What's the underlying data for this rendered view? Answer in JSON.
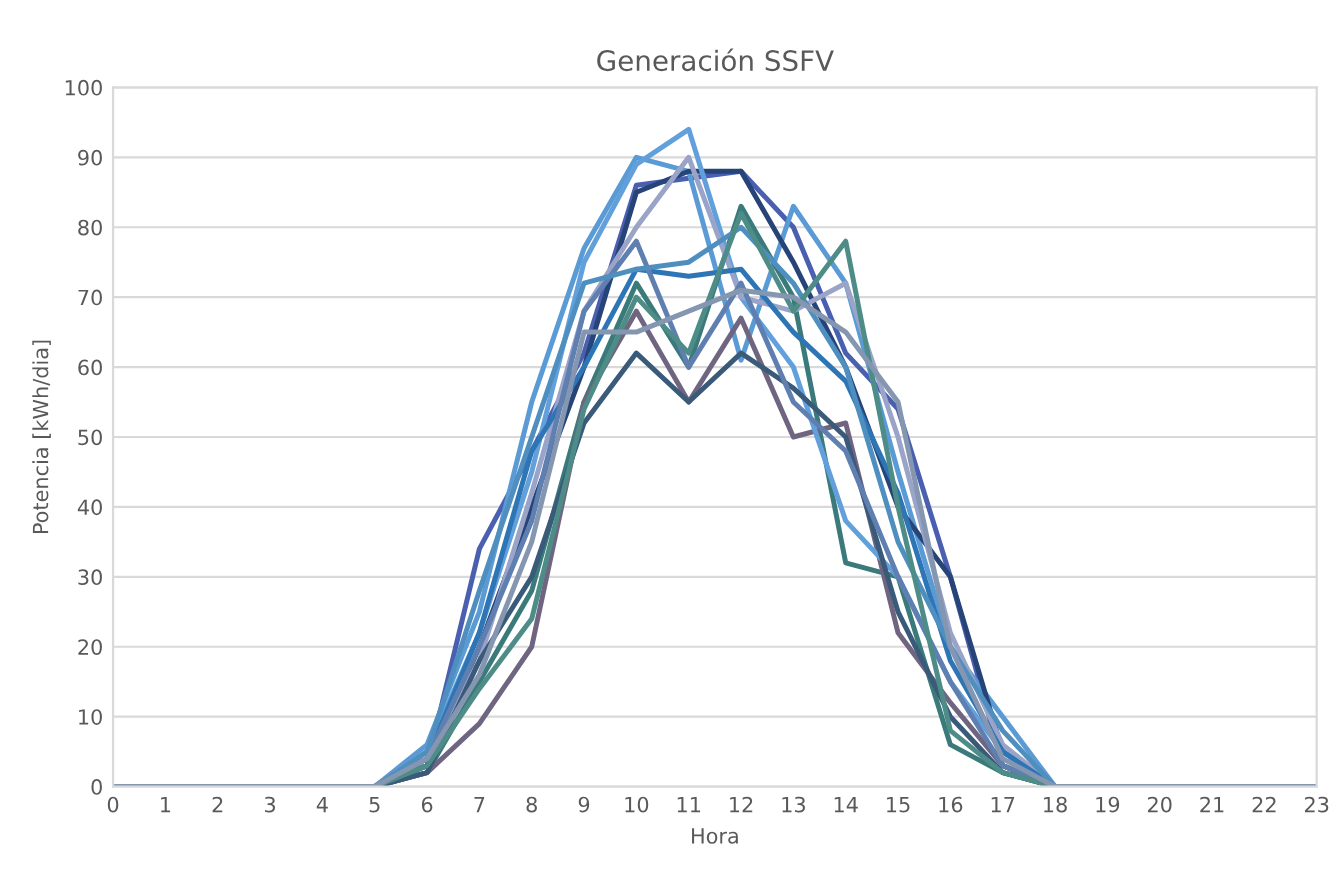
{
  "chart_data": {
    "type": "line",
    "title": "Generación SSFV",
    "xlabel": "Hora",
    "ylabel": "Potencia [kWh/dia]",
    "x": [
      0,
      1,
      2,
      3,
      4,
      5,
      6,
      7,
      8,
      9,
      10,
      11,
      12,
      13,
      14,
      15,
      16,
      17,
      18,
      19,
      20,
      21,
      22,
      23
    ],
    "xlim": [
      0,
      23
    ],
    "xticks": [
      0,
      1,
      2,
      3,
      4,
      5,
      6,
      7,
      8,
      9,
      10,
      11,
      12,
      13,
      14,
      15,
      16,
      17,
      18,
      19,
      20,
      21,
      22,
      23
    ],
    "ylim": [
      0,
      100
    ],
    "yticks": [
      0,
      10,
      20,
      30,
      40,
      50,
      60,
      70,
      80,
      90,
      100
    ],
    "grid": "y",
    "legend": false,
    "marker": "none",
    "line_style": "solid",
    "series": [
      {
        "color": "#4a5fb0",
        "values": [
          null,
          null,
          null,
          null,
          null,
          0,
          3,
          34,
          48,
          62,
          86,
          87,
          88,
          80,
          62,
          54,
          30,
          3,
          0,
          null,
          null,
          null,
          null,
          null
        ]
      },
      {
        "color": "#5b9bd5",
        "values": [
          null,
          null,
          null,
          null,
          null,
          0,
          6,
          25,
          55,
          77,
          90,
          88,
          61,
          83,
          72,
          45,
          20,
          10,
          0,
          null,
          null,
          null,
          null,
          null
        ]
      },
      {
        "color": "#264478",
        "values": [
          null,
          null,
          null,
          null,
          null,
          0,
          3,
          20,
          40,
          60,
          85,
          88,
          88,
          75,
          60,
          40,
          30,
          5,
          0,
          null,
          null,
          null,
          null,
          null
        ]
      },
      {
        "color": "#3b7a7a",
        "values": [
          null,
          null,
          null,
          null,
          null,
          0,
          2,
          15,
          28,
          55,
          72,
          60,
          83,
          70,
          32,
          30,
          6,
          2,
          0,
          null,
          null,
          null,
          null,
          null
        ]
      },
      {
        "color": "#6f6580",
        "values": [
          null,
          null,
          null,
          null,
          null,
          0,
          2,
          9,
          20,
          55,
          68,
          55,
          67,
          50,
          52,
          22,
          12,
          3,
          0,
          null,
          null,
          null,
          null,
          null
        ]
      },
      {
        "color": "#62a0dc",
        "values": [
          null,
          null,
          null,
          null,
          null,
          0,
          5,
          22,
          45,
          75,
          89,
          94,
          70,
          60,
          38,
          30,
          15,
          5,
          0,
          null,
          null,
          null,
          null,
          null
        ]
      },
      {
        "color": "#9aa3c8",
        "values": [
          null,
          null,
          null,
          null,
          null,
          0,
          5,
          18,
          42,
          68,
          80,
          90,
          70,
          68,
          72,
          50,
          22,
          6,
          0,
          null,
          null,
          null,
          null,
          null
        ]
      },
      {
        "color": "#2e75b6",
        "values": [
          null,
          null,
          null,
          null,
          null,
          0,
          4,
          22,
          48,
          60,
          74,
          73,
          74,
          65,
          58,
          42,
          18,
          5,
          0,
          null,
          null,
          null,
          null,
          null
        ]
      },
      {
        "color": "#3a5a7a",
        "values": [
          null,
          null,
          null,
          null,
          null,
          0,
          2,
          18,
          30,
          52,
          62,
          55,
          62,
          57,
          50,
          25,
          10,
          2,
          0,
          null,
          null,
          null,
          null,
          null
        ]
      },
      {
        "color": "#5f7fb0",
        "values": [
          null,
          null,
          null,
          null,
          null,
          0,
          4,
          20,
          38,
          68,
          78,
          60,
          72,
          55,
          48,
          30,
          15,
          3,
          0,
          null,
          null,
          null,
          null,
          null
        ]
      },
      {
        "color": "#4f8fc0",
        "values": [
          null,
          null,
          null,
          null,
          null,
          0,
          5,
          28,
          50,
          72,
          74,
          75,
          80,
          72,
          60,
          35,
          20,
          8,
          0,
          null,
          null,
          null,
          null,
          null
        ]
      },
      {
        "color": "#4e8c88",
        "values": [
          null,
          null,
          null,
          null,
          null,
          0,
          3,
          14,
          24,
          54,
          70,
          62,
          82,
          68,
          78,
          40,
          8,
          2,
          0,
          null,
          null,
          null,
          null,
          null
        ]
      },
      {
        "color": "#8496b0",
        "values": [
          0,
          0,
          0,
          0,
          0,
          0,
          4,
          16,
          35,
          65,
          65,
          68,
          71,
          70,
          65,
          55,
          20,
          4,
          0,
          0,
          0,
          0,
          0,
          0
        ]
      }
    ]
  }
}
